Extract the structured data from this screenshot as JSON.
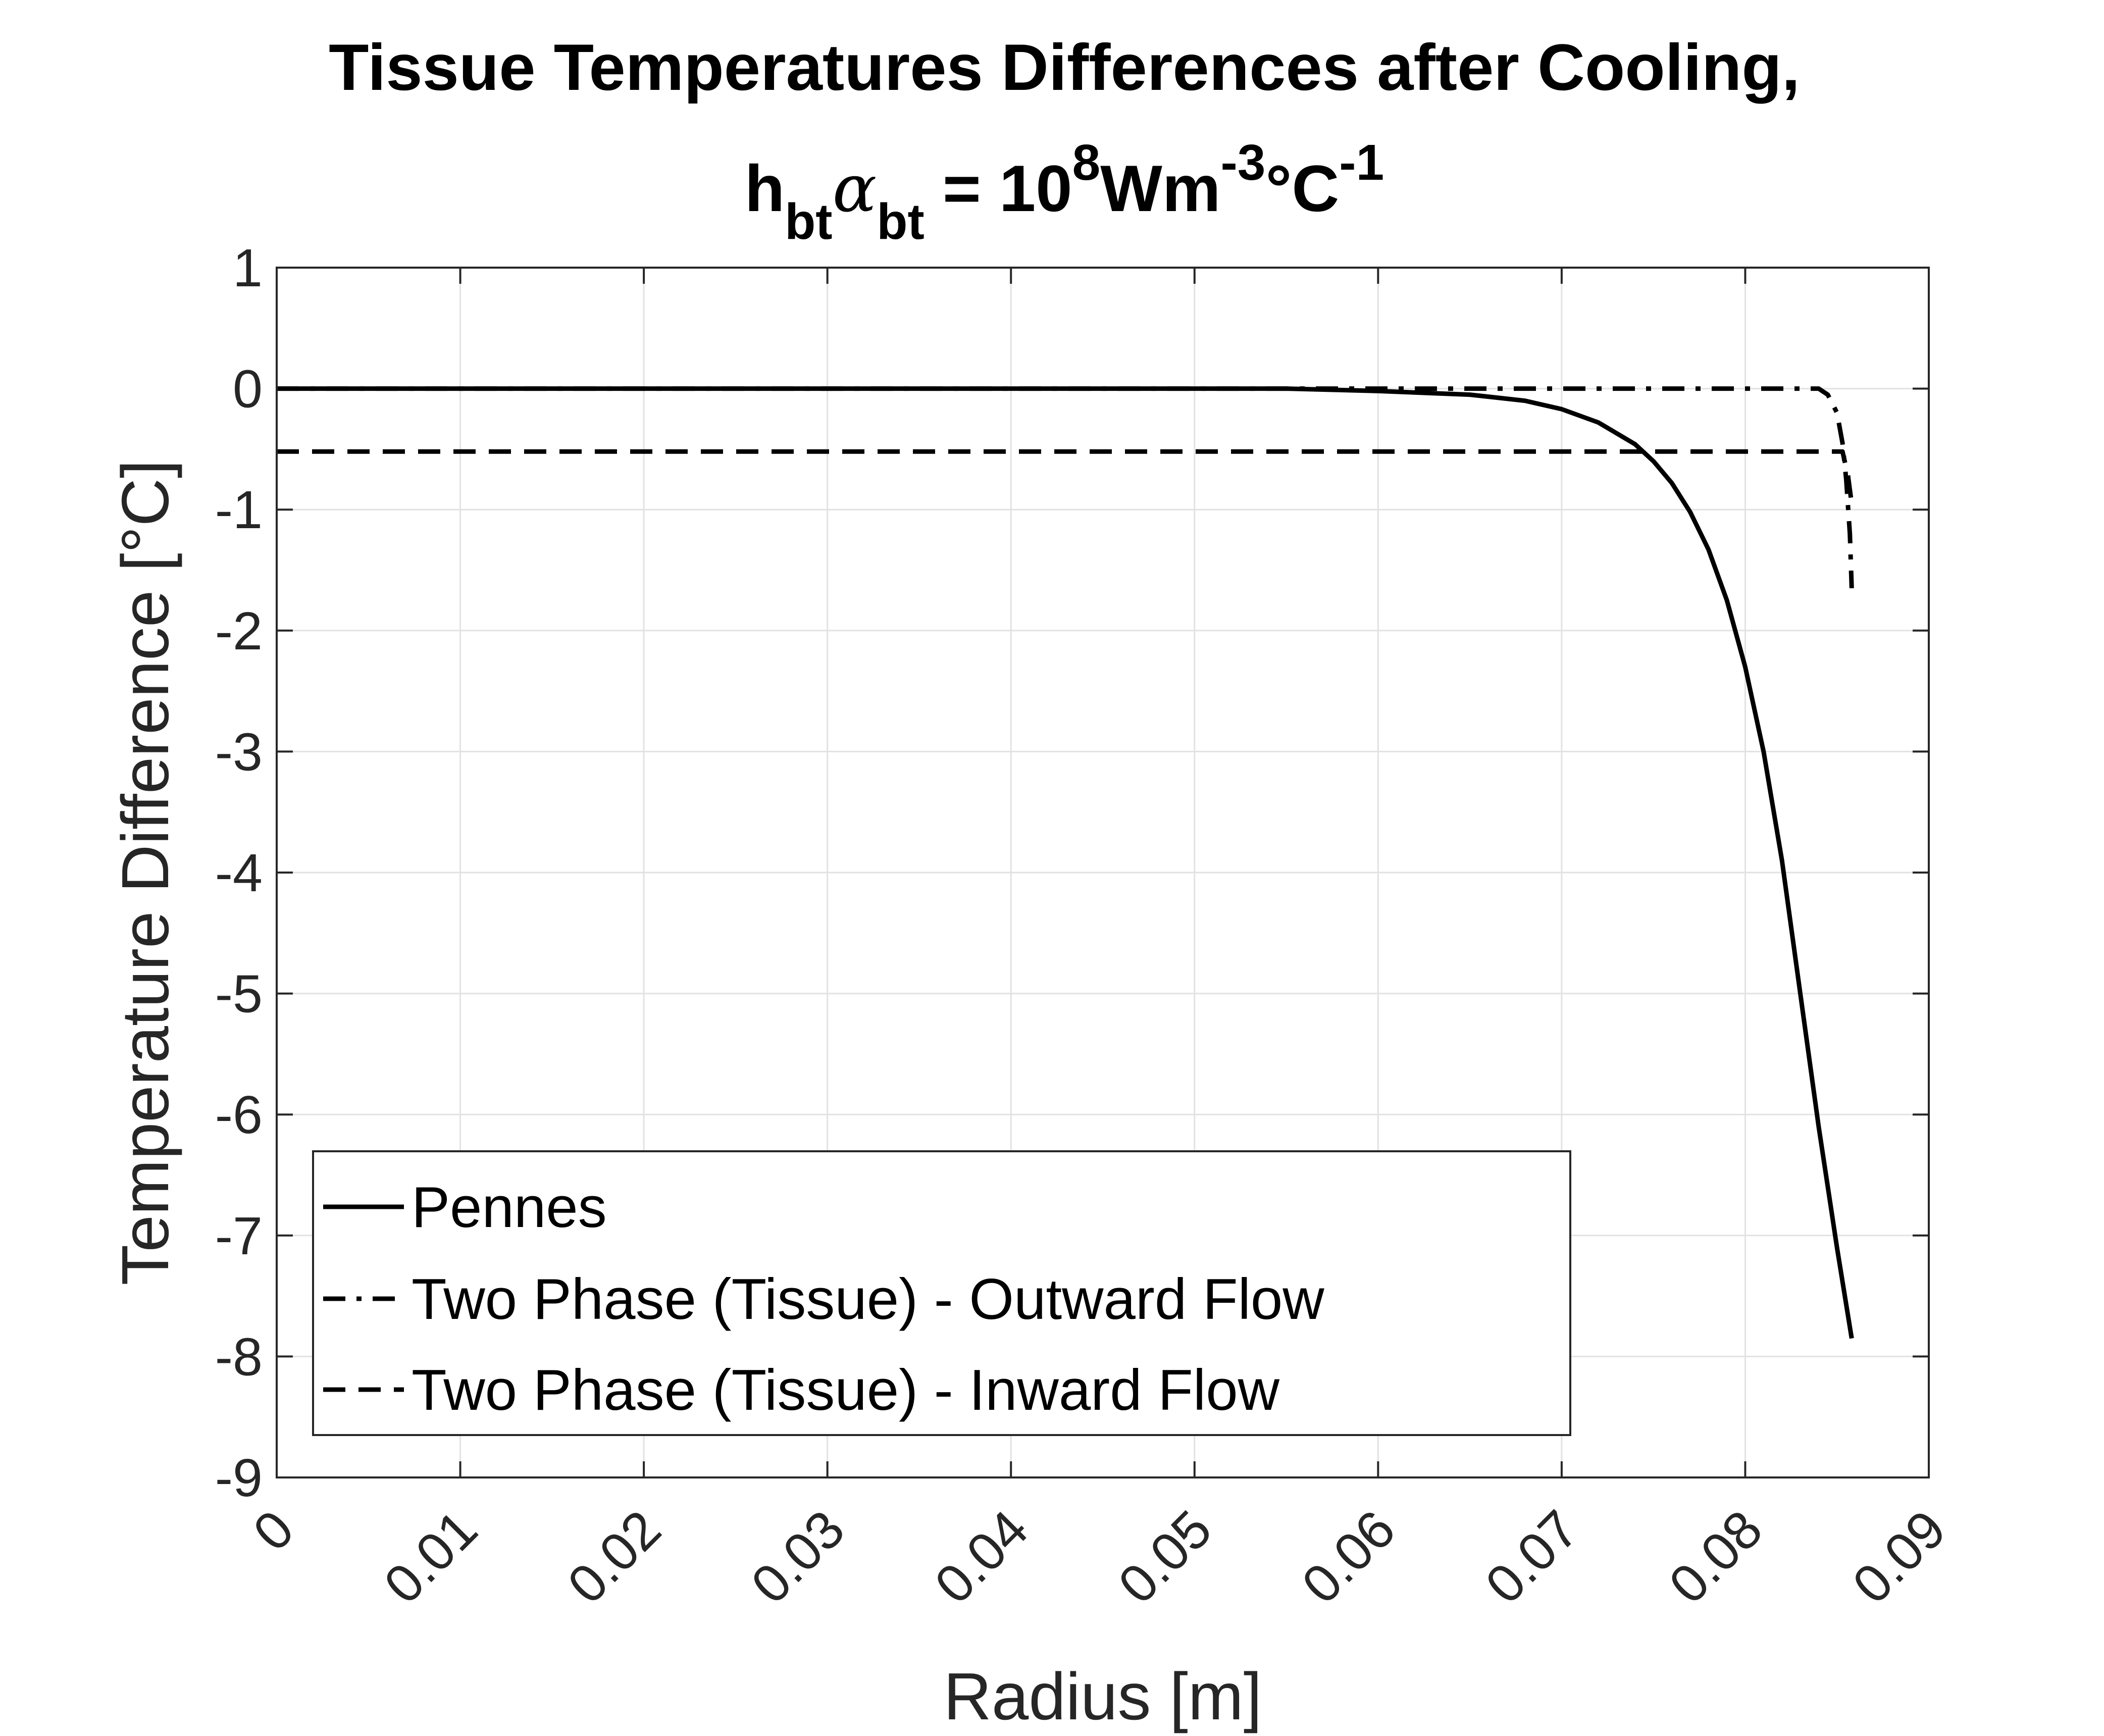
{
  "chart_data": {
    "type": "line",
    "title_line1": "Tissue Temperatures Differences after Cooling,",
    "title_line2": {
      "h": "h",
      "h_sub": "bt",
      "alpha": "α",
      "alpha_sub": "bt",
      "equals_base": " = 10",
      "exp1": "8",
      "unit1": "Wm",
      "exp2": "-3",
      "unit2": "°C",
      "exp3": "-1"
    },
    "xlabel": "Radius [m]",
    "ylabel": "Temperature Difference [°C]",
    "xlim": [
      0,
      0.09
    ],
    "ylim": [
      -9,
      1
    ],
    "xticks": [
      0,
      0.01,
      0.02,
      0.03,
      0.04,
      0.05,
      0.06,
      0.07,
      0.08,
      0.09
    ],
    "xtick_labels": [
      "0",
      "0.01",
      "0.02",
      "0.03",
      "0.04",
      "0.05",
      "0.06",
      "0.07",
      "0.08",
      "0.09"
    ],
    "yticks": [
      1,
      0,
      -1,
      -2,
      -3,
      -4,
      -5,
      -6,
      -7,
      -8,
      -9
    ],
    "ytick_labels": [
      "1",
      "0",
      "-1",
      "-2",
      "-3",
      "-4",
      "-5",
      "-6",
      "-7",
      "-8",
      "-9"
    ],
    "grid": true,
    "legend_position": "bottom-left",
    "series": [
      {
        "name": "Pennes",
        "style": "solid",
        "color": "#000000",
        "x": [
          0,
          0.055,
          0.06,
          0.065,
          0.068,
          0.07,
          0.072,
          0.074,
          0.075,
          0.076,
          0.077,
          0.078,
          0.079,
          0.08,
          0.081,
          0.082,
          0.083,
          0.084,
          0.085,
          0.0858
        ],
        "y": [
          0,
          0,
          -0.02,
          -0.05,
          -0.1,
          -0.17,
          -0.28,
          -0.46,
          -0.6,
          -0.78,
          -1.02,
          -1.33,
          -1.75,
          -2.3,
          -3.0,
          -3.9,
          -5.0,
          -6.1,
          -7.1,
          -7.85
        ]
      },
      {
        "name": "Two Phase (Tissue) - Outward Flow",
        "style": "dashdot",
        "color": "#000000",
        "x": [
          0,
          0.084,
          0.0845,
          0.085,
          0.0853,
          0.0855,
          0.0857,
          0.0858
        ],
        "y": [
          0,
          0,
          -0.05,
          -0.2,
          -0.45,
          -0.75,
          -1.2,
          -1.65
        ]
      },
      {
        "name": "Two Phase (Tissue) - Inward Flow",
        "style": "dashed",
        "color": "#000000",
        "x": [
          0,
          0.0853,
          0.0856,
          0.0858
        ],
        "y": [
          -0.52,
          -0.52,
          -0.72,
          -0.95
        ]
      }
    ]
  }
}
